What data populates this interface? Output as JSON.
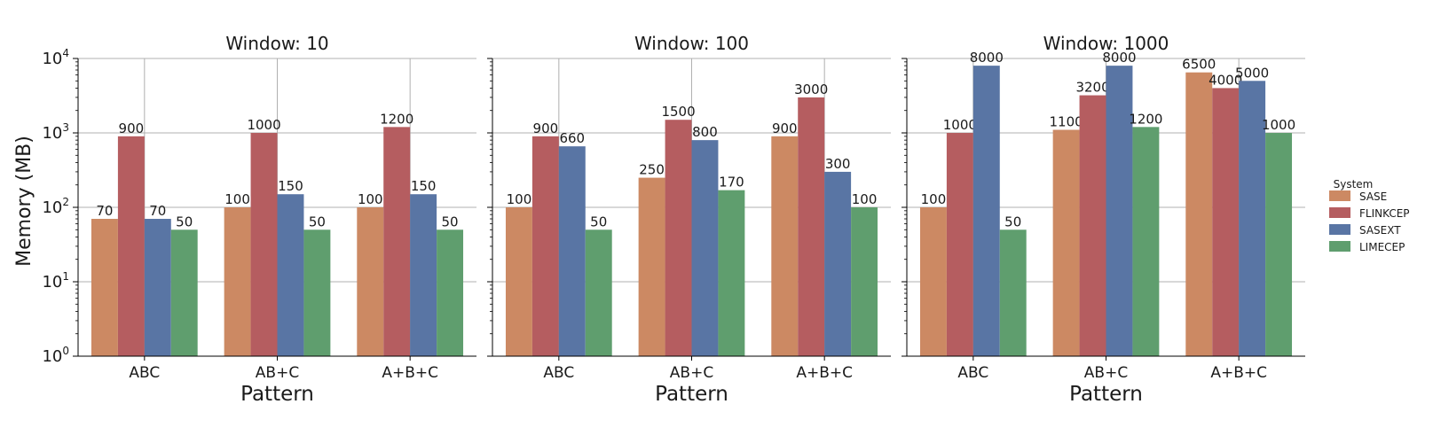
{
  "figure": {
    "ylabel": "Memory (MB)",
    "legend_title": "System",
    "legend_placement": "right"
  },
  "colors": {
    "SASE": "#cc8963",
    "FLINKCEP": "#b55d60",
    "SASEXT": "#5975a4",
    "LIMECEP": "#5f9e6e"
  },
  "chart_data": [
    {
      "type": "bar",
      "title": "Window: 10",
      "xlabel": "Pattern",
      "ylabel": "Memory (MB)",
      "yscale": "log",
      "ylim": [
        1,
        10000
      ],
      "yticks": [
        "10^0",
        "10^1",
        "10^2",
        "10^3",
        "10^4"
      ],
      "grid": true,
      "categories": [
        "ABC",
        "AB+C",
        "A+B+C"
      ],
      "series": [
        {
          "name": "SASE",
          "values": [
            70,
            100,
            100
          ],
          "labels": [
            "70",
            "100",
            "100"
          ]
        },
        {
          "name": "FLINKCEP",
          "values": [
            900,
            1000,
            1200
          ],
          "labels": [
            "900",
            "1000",
            "1200"
          ]
        },
        {
          "name": "SASEXT",
          "values": [
            70,
            150,
            150
          ],
          "labels": [
            "70",
            "150",
            "150"
          ]
        },
        {
          "name": "LIMECEP",
          "values": [
            50,
            50,
            50
          ],
          "labels": [
            "50",
            "50",
            "50"
          ]
        }
      ]
    },
    {
      "type": "bar",
      "title": "Window: 100",
      "xlabel": "Pattern",
      "yscale": "log",
      "ylim": [
        1,
        10000
      ],
      "grid": true,
      "categories": [
        "ABC",
        "AB+C",
        "A+B+C"
      ],
      "series": [
        {
          "name": "SASE",
          "values": [
            100,
            250,
            900
          ],
          "labels": [
            "100",
            "250",
            "900"
          ]
        },
        {
          "name": "FLINKCEP",
          "values": [
            900,
            1500,
            3000
          ],
          "labels": [
            "900",
            "1500",
            "3000"
          ]
        },
        {
          "name": "SASEXT",
          "values": [
            660,
            800,
            300
          ],
          "labels": [
            "660",
            "800",
            "300"
          ]
        },
        {
          "name": "LIMECEP",
          "values": [
            50,
            170,
            100
          ],
          "labels": [
            "50",
            "170",
            "100"
          ]
        }
      ]
    },
    {
      "type": "bar",
      "title": "Window: 1000",
      "xlabel": "Pattern",
      "yscale": "log",
      "ylim": [
        1,
        10000
      ],
      "grid": true,
      "categories": [
        "ABC",
        "AB+C",
        "A+B+C"
      ],
      "series": [
        {
          "name": "SASE",
          "values": [
            100,
            1100,
            6500
          ],
          "labels": [
            "100",
            "1100",
            "6500"
          ]
        },
        {
          "name": "FLINKCEP",
          "values": [
            1000,
            3200,
            4000
          ],
          "labels": [
            "1000",
            "3200",
            "4000"
          ]
        },
        {
          "name": "SASEXT",
          "values": [
            8000,
            8000,
            5000
          ],
          "labels": [
            "8000",
            "8000",
            "5000"
          ]
        },
        {
          "name": "LIMECEP",
          "values": [
            50,
            1200,
            1000
          ],
          "labels": [
            "50",
            "1200",
            "1000"
          ]
        }
      ]
    }
  ]
}
